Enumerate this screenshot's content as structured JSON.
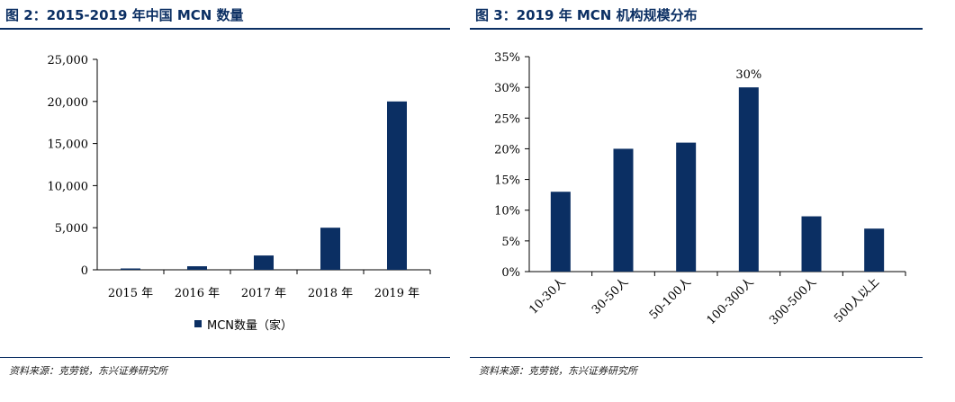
{
  "colors": {
    "bar": "#0b2f63",
    "title": "#0b2f63",
    "axis": "#000000"
  },
  "left": {
    "title": "图 2：2015-2019 年中国 MCN 数量",
    "source": "资料来源：克劳锐，东兴证券研究所"
  },
  "right": {
    "title": "图 3：2019 年 MCN 机构规模分布",
    "source": "资料来源：克劳锐，东兴证券研究所"
  },
  "chart_data": [
    {
      "type": "bar",
      "categories": [
        "2015 年",
        "2016 年",
        "2017 年",
        "2018 年",
        "2019 年"
      ],
      "series": [
        {
          "name": "MCN数量（家）",
          "values": [
            160,
            420,
            1700,
            5000,
            20000
          ]
        }
      ],
      "ylim": [
        0,
        25000
      ],
      "yticks": [
        0,
        5000,
        10000,
        15000,
        20000,
        25000
      ],
      "ytick_labels": [
        "0",
        "5,000",
        "10,000",
        "15,000",
        "20,000",
        "25,000"
      ],
      "legend": "bottom",
      "grid": false
    },
    {
      "type": "bar",
      "categories": [
        "10-30人",
        "30-50人",
        "50-100人",
        "100-300人",
        "300-500人",
        "500人以上"
      ],
      "values": [
        13,
        20,
        21,
        30,
        9,
        7
      ],
      "ylim": [
        0,
        35
      ],
      "yticks": [
        0,
        5,
        10,
        15,
        20,
        25,
        30,
        35
      ],
      "ytick_labels": [
        "0%",
        "5%",
        "10%",
        "15%",
        "20%",
        "25%",
        "30%",
        "35%"
      ],
      "annotations": [
        {
          "category": "100-300人",
          "text": "30%"
        }
      ],
      "legend": "none",
      "grid": false
    }
  ]
}
